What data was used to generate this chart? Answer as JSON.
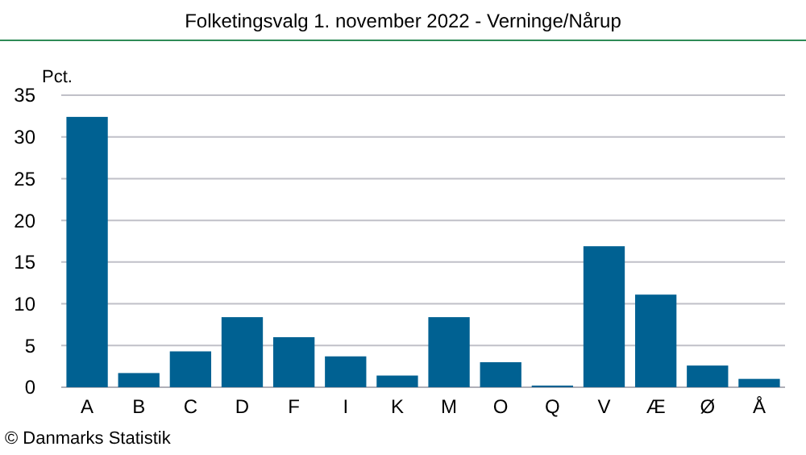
{
  "chart_data": {
    "type": "bar",
    "title": "Folketingsvalg 1. november 2022 - Verninge/Nårup",
    "ylabel": "Pct.",
    "annotations": [
      "© Danmarks Statistik"
    ],
    "categories": [
      "A",
      "B",
      "C",
      "D",
      "F",
      "I",
      "K",
      "M",
      "O",
      "Q",
      "V",
      "Æ",
      "Ø",
      "Å"
    ],
    "values": [
      32.4,
      1.7,
      4.3,
      8.4,
      6.0,
      3.7,
      1.4,
      8.4,
      3.0,
      0.2,
      16.9,
      11.1,
      2.6,
      1.0
    ],
    "color": "#006192",
    "ylim": [
      0,
      35
    ],
    "yticks": [
      0,
      5,
      10,
      15,
      20,
      25,
      30,
      35
    ],
    "grid": "y"
  }
}
